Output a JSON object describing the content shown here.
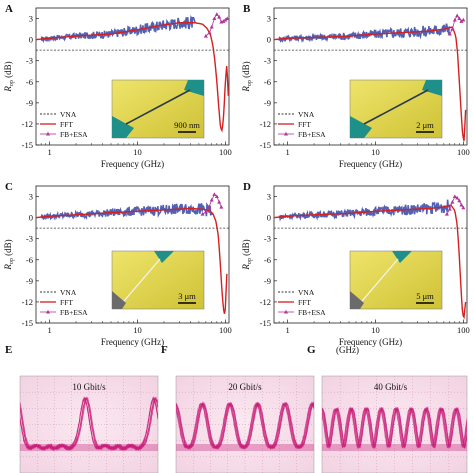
{
  "figure": {
    "panel_labels": [
      "A",
      "B",
      "C",
      "D",
      "E",
      "F",
      "G"
    ],
    "scale_bars": [
      "900 nm",
      "2 μm",
      "3 μm",
      "5 μm"
    ],
    "eye_labels": [
      "10 Gbit/s",
      "20 Gbit/s",
      "40 Gbit/s"
    ],
    "g_unit": "(GHz)",
    "colors": {
      "vna": "#333333",
      "fft": "#d62020",
      "fb_esa": "#b0359a",
      "fft_blue": "#3346a8",
      "eye_trace": "#c8207a",
      "eye_bg": "#f2d2e2",
      "image_yellow": "#e8d84a",
      "image_teal": "#1f8f8a"
    }
  },
  "chart_data": [
    {
      "type": "line",
      "panel": "A",
      "xlabel": "Frequency (GHz)",
      "ylabel": "R_op (dB)",
      "xscale": "log",
      "xlim": [
        0.7,
        110
      ],
      "ylim": [
        -15,
        4.5
      ],
      "xticks": [
        "1",
        "10",
        "100"
      ],
      "yticks": [
        "3",
        "0",
        "-3",
        "-6",
        "-9",
        "-12",
        "-15"
      ],
      "legend": [
        "VNA",
        "FFT",
        "FB+ESA"
      ],
      "legend_position": "bottom-left",
      "series": [
        {
          "name": "VNA",
          "x": [
            0.7,
            110
          ],
          "y": [
            -1.5,
            -1.5
          ]
        },
        {
          "name": "FFT",
          "x": [
            0.7,
            1,
            2,
            5,
            10,
            20,
            30,
            45,
            55,
            62,
            68,
            72,
            76,
            80,
            84,
            88,
            92,
            96,
            100,
            104,
            108
          ],
          "y": [
            0.0,
            0.2,
            0.5,
            0.8,
            1.4,
            2.1,
            2.4,
            2.4,
            2.2,
            1.6,
            0.6,
            -0.8,
            -3.0,
            -6.0,
            -9.5,
            -12.5,
            -13.0,
            -10.5,
            -6.0,
            -3.5,
            -8.0
          ]
        },
        {
          "name": "FB+ESA",
          "x": [
            60,
            66,
            70,
            75,
            80,
            85,
            90,
            95,
            100,
            105
          ],
          "y": [
            0.5,
            1.0,
            1.8,
            3.0,
            3.6,
            3.2,
            2.5,
            2.6,
            2.8,
            3.0
          ]
        }
      ]
    },
    {
      "type": "line",
      "panel": "B",
      "xlabel": "Frequency (GHz)",
      "ylabel": "R_op (dB)",
      "xscale": "log",
      "xlim": [
        0.7,
        110
      ],
      "ylim": [
        -15,
        4.5
      ],
      "xticks": [
        "1",
        "10",
        "100"
      ],
      "yticks": [
        "3",
        "0",
        "-3",
        "-6",
        "-9",
        "-12",
        "-15"
      ],
      "legend": [
        "VNA",
        "FFT",
        "FB+ESA"
      ],
      "legend_position": "bottom-left",
      "series": [
        {
          "name": "VNA",
          "x": [
            0.7,
            110
          ],
          "y": [
            -1.5,
            -1.5
          ]
        },
        {
          "name": "FFT",
          "x": [
            0.7,
            1,
            2,
            5,
            10,
            20,
            40,
            60,
            75,
            82,
            86,
            90,
            94,
            98,
            102,
            106
          ],
          "y": [
            0.0,
            0.2,
            0.3,
            0.5,
            0.8,
            1.0,
            1.2,
            1.5,
            1.8,
            0.5,
            -2.0,
            -6.0,
            -10.0,
            -13.5,
            -14.5,
            -10.0
          ]
        },
        {
          "name": "FB+ESA",
          "x": [
            70,
            75,
            80,
            85,
            90,
            95,
            100
          ],
          "y": [
            0.8,
            1.5,
            2.8,
            3.4,
            3.0,
            2.6,
            2.8
          ]
        }
      ]
    },
    {
      "type": "line",
      "panel": "C",
      "xlabel": "Frequency (GHz)",
      "ylabel": "R_op (dB)",
      "xscale": "log",
      "xlim": [
        0.7,
        110
      ],
      "ylim": [
        -15,
        4.5
      ],
      "xticks": [
        "1",
        "10",
        "100"
      ],
      "yticks": [
        "3",
        "0",
        "-3",
        "-6",
        "-9",
        "-12",
        "-15"
      ],
      "legend": [
        "VNA",
        "FFT",
        "FB+ESA"
      ],
      "legend_position": "bottom-left",
      "series": [
        {
          "name": "VNA",
          "x": [
            0.7,
            110
          ],
          "y": [
            -1.5,
            -1.5
          ]
        },
        {
          "name": "FFT",
          "x": [
            0.7,
            1,
            2,
            5,
            10,
            20,
            40,
            55,
            65,
            72,
            78,
            83,
            87,
            91,
            95,
            99,
            104
          ],
          "y": [
            0.0,
            0.2,
            0.4,
            0.7,
            0.9,
            1.1,
            1.3,
            1.2,
            1.0,
            0.6,
            -0.5,
            -2.5,
            -6.0,
            -10.0,
            -13.0,
            -14.0,
            -8.0
          ]
        },
        {
          "name": "FB+ESA",
          "x": [
            55,
            60,
            65,
            70,
            75,
            80,
            85,
            90
          ],
          "y": [
            0.5,
            0.8,
            1.5,
            2.5,
            3.3,
            3.0,
            2.2,
            1.5
          ]
        }
      ]
    },
    {
      "type": "line",
      "panel": "D",
      "xlabel": "Frequency (GHz)",
      "ylabel": "R_op (dB)",
      "xscale": "log",
      "xlim": [
        0.7,
        110
      ],
      "ylim": [
        -15,
        4.5
      ],
      "xticks": [
        "1",
        "10",
        "100"
      ],
      "yticks": [
        "3",
        "0",
        "-3",
        "-6",
        "-9",
        "-12",
        "-15"
      ],
      "legend": [
        "VNA",
        "FFT",
        "FB+ESA"
      ],
      "legend_position": "bottom-left",
      "series": [
        {
          "name": "VNA",
          "x": [
            0.7,
            110
          ],
          "y": [
            -1.5,
            -1.5
          ]
        },
        {
          "name": "FFT",
          "x": [
            0.7,
            1,
            2,
            5,
            10,
            20,
            40,
            60,
            72,
            80,
            85,
            89,
            93,
            97,
            101,
            106
          ],
          "y": [
            0.0,
            0.2,
            0.4,
            0.6,
            0.9,
            1.1,
            1.3,
            1.5,
            1.8,
            1.0,
            -1.0,
            -4.5,
            -9.0,
            -13.0,
            -14.5,
            -12.0
          ]
        },
        {
          "name": "FB+ESA",
          "x": [
            65,
            70,
            75,
            80,
            85,
            90,
            95,
            100
          ],
          "y": [
            0.5,
            1.2,
            2.2,
            3.0,
            2.8,
            2.4,
            1.8,
            1.4
          ]
        }
      ]
    }
  ]
}
